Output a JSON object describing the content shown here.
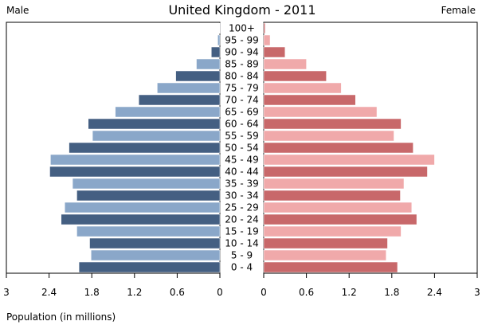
{
  "chart_data": {
    "type": "bar",
    "title": "United Kingdom - 2011",
    "left_label": "Male",
    "right_label": "Female",
    "xlabel": "Population (in millions)",
    "x_ticks": [
      "3",
      "2.4",
      "1.8",
      "1.2",
      "0.6",
      "0",
      "0",
      "0.6",
      "1.2",
      "1.8",
      "2.4",
      "3"
    ],
    "xlim": [
      0,
      3
    ],
    "categories": [
      "0 - 4",
      "5 - 9",
      "10 - 14",
      "15 - 19",
      "20 - 24",
      "25 - 29",
      "30 - 34",
      "35 - 39",
      "40 - 44",
      "45 - 49",
      "50 - 54",
      "55 - 59",
      "60 - 64",
      "65 - 69",
      "70 - 74",
      "75 - 79",
      "80 - 84",
      "85 - 89",
      "90 - 94",
      "95 - 99",
      "100+"
    ],
    "series": [
      {
        "values": [
          1.98,
          1.81,
          1.83,
          2.01,
          2.23,
          2.18,
          2.01,
          2.07,
          2.39,
          2.38,
          2.12,
          1.79,
          1.85,
          1.47,
          1.14,
          0.88,
          0.62,
          0.33,
          0.12,
          0.03,
          0.005
        ]
      },
      {
        "values": [
          1.88,
          1.72,
          1.74,
          1.93,
          2.15,
          2.08,
          1.92,
          1.97,
          2.3,
          2.4,
          2.1,
          1.83,
          1.93,
          1.59,
          1.29,
          1.09,
          0.88,
          0.6,
          0.3,
          0.09,
          0.02
        ]
      }
    ],
    "colors": {
      "male_dark": "#445f82",
      "male_light": "#8aa7c9",
      "female_dark": "#c8686a",
      "female_light": "#f0a9aa",
      "bar_stroke": "#ffffff"
    },
    "grid": false
  }
}
